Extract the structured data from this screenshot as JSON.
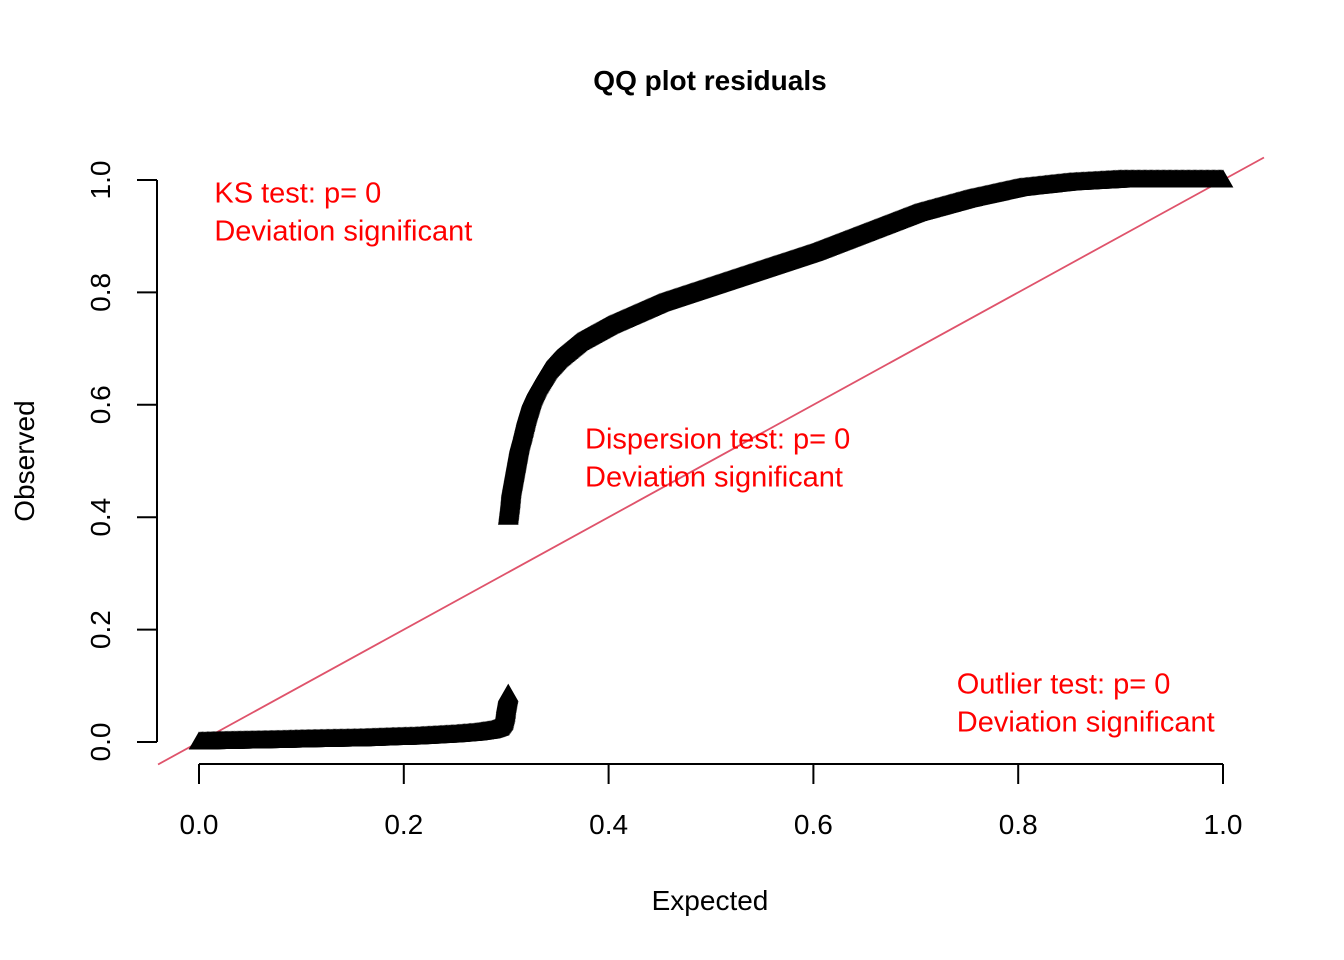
{
  "chart_data": {
    "type": "scatter",
    "title": "QQ plot residuals",
    "xlabel": "Expected",
    "ylabel": "Observed",
    "xlim": [
      0,
      1
    ],
    "ylim": [
      0,
      1
    ],
    "x_ticks": [
      "0.0",
      "0.2",
      "0.4",
      "0.6",
      "0.8",
      "1.0"
    ],
    "y_ticks": [
      "0.0",
      "0.2",
      "0.4",
      "0.6",
      "0.8",
      "1.0"
    ],
    "grid": false,
    "marker": "open-triangle",
    "colors": {
      "points": "#000000",
      "reference_line": "#DF536B",
      "annotation": "#FF0000"
    },
    "reference_line": {
      "slope": 1,
      "intercept": 0
    },
    "annotations": [
      {
        "id": "ks",
        "lines": [
          "KS test: p= 0",
          "Deviation  significant"
        ],
        "x": 0.015,
        "y": 0.96
      },
      {
        "id": "dispersion",
        "lines": [
          "Dispersion test: p= 0",
          "Deviation  significant"
        ],
        "x": 0.377,
        "y": 0.522
      },
      {
        "id": "outlier",
        "lines": [
          "Outlier test: p= 0",
          "Deviation  significant"
        ],
        "x": 0.74,
        "y": 0.086
      }
    ],
    "series": [
      {
        "points_lower": [
          [
            0.0,
            0.0
          ],
          [
            0.02,
            0.001
          ],
          [
            0.05,
            0.002
          ],
          [
            0.08,
            0.003
          ],
          [
            0.1,
            0.004
          ],
          [
            0.13,
            0.005
          ],
          [
            0.16,
            0.006
          ],
          [
            0.19,
            0.008
          ],
          [
            0.21,
            0.009
          ],
          [
            0.23,
            0.011
          ],
          [
            0.25,
            0.013
          ],
          [
            0.27,
            0.016
          ],
          [
            0.285,
            0.02
          ],
          [
            0.293,
            0.025
          ],
          [
            0.297,
            0.035
          ],
          [
            0.299,
            0.05
          ],
          [
            0.3,
            0.065
          ],
          [
            0.301,
            0.075
          ],
          [
            0.302,
            0.085
          ]
        ],
        "points_upper": [
          [
            0.302,
            0.4
          ],
          [
            0.304,
            0.43
          ],
          [
            0.305,
            0.45
          ],
          [
            0.307,
            0.47
          ],
          [
            0.309,
            0.49
          ],
          [
            0.311,
            0.51
          ],
          [
            0.313,
            0.53
          ],
          [
            0.316,
            0.55
          ],
          [
            0.32,
            0.58
          ],
          [
            0.325,
            0.61
          ],
          [
            0.33,
            0.63
          ],
          [
            0.34,
            0.66
          ],
          [
            0.35,
            0.68
          ],
          [
            0.37,
            0.71
          ],
          [
            0.4,
            0.74
          ],
          [
            0.45,
            0.78
          ],
          [
            0.5,
            0.81
          ],
          [
            0.55,
            0.84
          ],
          [
            0.6,
            0.87
          ],
          [
            0.65,
            0.905
          ],
          [
            0.7,
            0.94
          ],
          [
            0.75,
            0.965
          ],
          [
            0.8,
            0.985
          ],
          [
            0.85,
            0.995
          ],
          [
            0.9,
            1.0
          ],
          [
            0.95,
            1.0
          ],
          [
            1.0,
            1.0
          ]
        ]
      }
    ]
  }
}
